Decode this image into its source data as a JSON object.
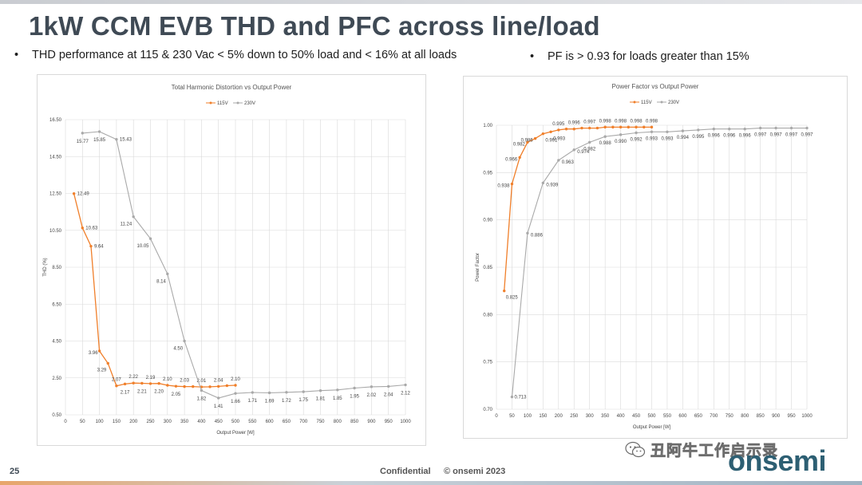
{
  "slide": {
    "title": "1kW CCM EVB THD and PFC across line/load",
    "bullet1": "THD performance at 115 & 230 Vac < 5% down to 50% load and < 16% at all loads",
    "bullet2": "PF is > 0.93 for loads greater than 15%",
    "bullet_symbol": "•",
    "page_number": "25",
    "confidential": "Confidential",
    "copyright": "© onsemi 2023",
    "brand": "onsemi",
    "watermark": "丑阿牛工作启示录"
  },
  "colors": {
    "series_115V": "#f07f2a",
    "series_230V": "#a9a9a9",
    "grid": "#d9d9d9",
    "title_text": "#3f4a55",
    "brand": "#2d5f73"
  },
  "chart_data": [
    {
      "type": "line",
      "title": "Total Harmonic Distortion vs Output Power",
      "xlabel": "Output Power [W]",
      "ylabel": "THD (%)",
      "xlim": [
        0,
        1000
      ],
      "ylim": [
        0.5,
        16.5
      ],
      "xticks": [
        0,
        50,
        100,
        150,
        200,
        250,
        300,
        350,
        400,
        450,
        500,
        550,
        600,
        650,
        700,
        750,
        800,
        850,
        900,
        950,
        1000
      ],
      "yticks": [
        0.5,
        2.5,
        4.5,
        6.5,
        8.5,
        10.5,
        12.5,
        14.5,
        16.5
      ],
      "ytick_labels": [
        "0.50",
        "2.50",
        "4.50",
        "6.50",
        "8.50",
        "10.50",
        "12.50",
        "14.50",
        "16.50"
      ],
      "grid": true,
      "legend": "top-center",
      "series": [
        {
          "name": "115V",
          "x": [
            25,
            50,
            75,
            100,
            125,
            150,
            175,
            200,
            225,
            250,
            275,
            300,
            325,
            350,
            375,
            400,
            425,
            450,
            475,
            500
          ],
          "y": [
            12.49,
            10.63,
            9.64,
            3.96,
            3.29,
            2.07,
            2.17,
            2.22,
            2.21,
            2.19,
            2.2,
            2.1,
            2.05,
            2.03,
            2.03,
            2.01,
            2.02,
            2.04,
            2.08,
            2.1
          ],
          "labels": {
            "0": "12.49",
            "1": "10.63",
            "2": "9.64",
            "3": "3.96",
            "4": "3.29",
            "5": "2.07",
            "6": "2.17",
            "7": "2.22",
            "8": "2.21",
            "9": "2.19",
            "10": "2.20",
            "11": "2.10",
            "12": "2.05",
            "13": "2.03",
            "15": "2.01",
            "17": "2.04",
            "19": "2.10"
          }
        },
        {
          "name": "230V",
          "x": [
            50,
            100,
            150,
            200,
            250,
            300,
            350,
            400,
            450,
            500,
            550,
            600,
            650,
            700,
            750,
            800,
            850,
            900,
            950,
            1000
          ],
          "y": [
            15.77,
            15.85,
            15.43,
            11.24,
            10.05,
            8.14,
            4.5,
            1.82,
            1.41,
            1.66,
            1.71,
            1.69,
            1.72,
            1.75,
            1.81,
            1.85,
            1.95,
            2.02,
            2.04,
            2.12
          ],
          "labels": {
            "0": "15.77",
            "1": "15.85",
            "2": "15.43",
            "3": "11.24",
            "4": "10.05",
            "5": "8.14",
            "6": "4.50",
            "7": "1.82",
            "8": "1.41",
            "9": "1.66",
            "10": "1.71",
            "11": "1.69",
            "12": "1.72",
            "13": "1.75",
            "14": "1.81",
            "15": "1.85",
            "16": "1.95",
            "17": "2.02",
            "18": "2.04",
            "19": "2.12"
          }
        }
      ]
    },
    {
      "type": "line",
      "title": "Power Factor vs Output Power",
      "xlabel": "Output Power [W]",
      "ylabel": "Power Factor",
      "xlim": [
        0,
        1000
      ],
      "ylim": [
        0.7,
        1.0
      ],
      "xticks": [
        0,
        50,
        100,
        150,
        200,
        250,
        300,
        350,
        400,
        450,
        500,
        550,
        600,
        650,
        700,
        750,
        800,
        850,
        900,
        950,
        1000
      ],
      "yticks": [
        0.7,
        0.75,
        0.8,
        0.85,
        0.9,
        0.95,
        1.0
      ],
      "ytick_labels": [
        "0.70",
        "0.75",
        "0.80",
        "0.85",
        "0.90",
        "0.95",
        "1.00"
      ],
      "grid": true,
      "legend": "top-center",
      "series": [
        {
          "name": "115V",
          "x": [
            25,
            50,
            75,
            100,
            125,
            150,
            175,
            200,
            225,
            250,
            275,
            300,
            325,
            350,
            375,
            400,
            425,
            450,
            475,
            500
          ],
          "y": [
            0.825,
            0.938,
            0.966,
            0.982,
            0.986,
            0.991,
            0.993,
            0.995,
            0.996,
            0.996,
            0.997,
            0.997,
            0.997,
            0.998,
            0.998,
            0.998,
            0.998,
            0.998,
            0.998,
            0.998
          ],
          "labels": {
            "0": "0.825",
            "1": "0.938",
            "2": "0.966",
            "3": "0.982",
            "4": "0.986",
            "5": "0.991",
            "6": "0.993",
            "7": "0.995",
            "9": "0.996",
            "11": "0.997",
            "13": "0.998",
            "15": "0.998",
            "17": "0.998",
            "19": "0.998"
          }
        },
        {
          "name": "230V",
          "x": [
            50,
            100,
            150,
            200,
            250,
            300,
            350,
            400,
            450,
            500,
            550,
            600,
            650,
            700,
            750,
            800,
            850,
            900,
            950,
            1000
          ],
          "y": [
            0.713,
            0.886,
            0.939,
            0.963,
            0.974,
            0.982,
            0.988,
            0.99,
            0.992,
            0.993,
            0.993,
            0.994,
            0.995,
            0.996,
            0.996,
            0.996,
            0.997,
            0.997,
            0.997,
            0.997
          ],
          "labels": {
            "0": "0.713",
            "1": "0.886",
            "2": "0.939",
            "3": "0.963",
            "4": "0.974",
            "5": "0.982",
            "6": "0.988",
            "7": "0.990",
            "8": "0.992",
            "9": "0.993",
            "10": "0.993",
            "11": "0.994",
            "12": "0.995",
            "13": "0.996",
            "14": "0.996",
            "15": "0.996",
            "16": "0.997",
            "17": "0.997",
            "18": "0.997",
            "19": "0.997"
          }
        }
      ]
    }
  ]
}
